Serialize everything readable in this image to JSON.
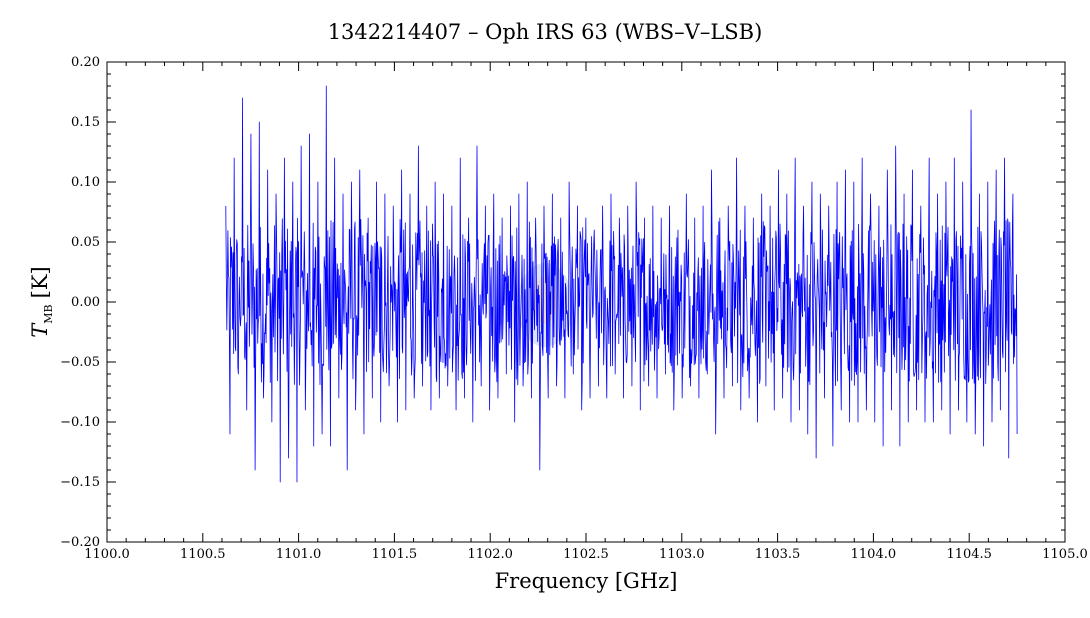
{
  "chart_data": {
    "type": "line",
    "title": "1342214407 – Oph IRS 63 (WBS–V–LSB)",
    "xlabel": "Frequency [GHz]",
    "ylabel": {
      "symbol": "T",
      "subscript": "MB",
      "unit": "[K]"
    },
    "xlim": [
      1100.0,
      1105.0
    ],
    "ylim": [
      -0.2,
      0.2
    ],
    "x_ticks": [
      "1100.0",
      "1100.5",
      "1101.0",
      "1101.5",
      "1102.0",
      "1102.5",
      "1103.0",
      "1103.5",
      "1104.0",
      "1104.5",
      "1105.0"
    ],
    "y_ticks": [
      "0.20",
      "0.15",
      "0.10",
      "0.05",
      "0.00",
      "−0.05",
      "−0.10",
      "−0.15",
      "−0.20"
    ],
    "grid": false,
    "line_color": "#0000ff",
    "series": [
      {
        "x_start": 1100.62,
        "x_end": 1104.75,
        "y": [
          0.08,
          -0.11,
          0.12,
          -0.06,
          0.17,
          -0.09,
          0.14,
          -0.14,
          0.15,
          -0.08,
          0.11,
          -0.1,
          0.09,
          -0.15,
          0.12,
          -0.13,
          0.1,
          -0.15,
          0.13,
          -0.09,
          0.14,
          -0.12,
          0.1,
          -0.11,
          0.18,
          -0.12,
          0.12,
          -0.08,
          0.09,
          -0.14,
          0.1,
          -0.09,
          0.11,
          -0.11,
          0.07,
          -0.08,
          0.1,
          -0.1,
          0.09,
          -0.07,
          0.08,
          -0.1,
          0.11,
          -0.09,
          0.09,
          -0.08,
          0.13,
          -0.07,
          0.08,
          -0.09,
          0.1,
          -0.08,
          0.09,
          -0.07,
          0.08,
          -0.09,
          0.12,
          -0.08,
          0.07,
          -0.1,
          0.13,
          -0.07,
          0.08,
          -0.09,
          0.09,
          -0.08,
          0.07,
          -0.06,
          0.08,
          -0.1,
          0.09,
          -0.07,
          0.1,
          -0.08,
          0.07,
          -0.14,
          0.08,
          -0.08,
          0.09,
          -0.07,
          0.07,
          -0.08,
          0.1,
          -0.06,
          0.08,
          -0.09,
          0.07,
          -0.08,
          0.06,
          -0.07,
          0.08,
          -0.08,
          0.09,
          -0.06,
          0.07,
          -0.08,
          0.08,
          -0.07,
          0.1,
          -0.09,
          0.07,
          -0.07,
          0.08,
          -0.08,
          0.07,
          -0.06,
          0.08,
          -0.09,
          0.06,
          -0.08,
          0.09,
          -0.07,
          0.07,
          -0.08,
          0.08,
          -0.06,
          0.11,
          -0.11,
          0.07,
          -0.08,
          0.08,
          -0.07,
          0.12,
          -0.09,
          0.08,
          -0.08,
          0.07,
          -0.1,
          0.09,
          -0.07,
          0.08,
          -0.09,
          0.11,
          -0.08,
          0.09,
          -0.1,
          0.12,
          -0.09,
          0.08,
          -0.11,
          0.1,
          -0.13,
          0.09,
          -0.08,
          0.08,
          -0.12,
          0.1,
          -0.09,
          0.11,
          -0.1,
          0.1,
          -0.1,
          0.12,
          -0.09,
          0.09,
          -0.1,
          0.08,
          -0.12,
          0.11,
          -0.09,
          0.13,
          -0.12,
          0.09,
          -0.1,
          0.11,
          -0.09,
          0.08,
          -0.1,
          0.12,
          -0.1,
          0.09,
          -0.09,
          0.1,
          -0.11,
          0.12,
          -0.09,
          0.1,
          -0.1,
          0.16,
          -0.11,
          0.09,
          -0.12,
          0.1,
          -0.1,
          0.11,
          -0.09,
          0.12,
          -0.13,
          0.09,
          -0.11
        ]
      }
    ]
  }
}
